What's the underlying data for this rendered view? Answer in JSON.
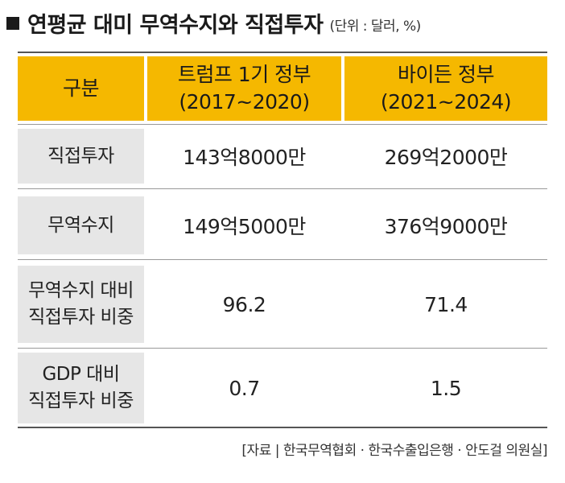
{
  "title": "연평균 대미 무역수지와 직접투자",
  "unit": "(단위 : 달러, %)",
  "table": {
    "header": {
      "category": "구분",
      "col1_line1": "트럼프 1기 정부",
      "col1_line2": "(2017~2020)",
      "col2_line1": "바이든 정부",
      "col2_line2": "(2021~2024)"
    },
    "rows": [
      {
        "label_line1": "직접투자",
        "label_line2": "",
        "trump": "143억8000만",
        "biden": "269억2000만"
      },
      {
        "label_line1": "무역수지",
        "label_line2": "",
        "trump": "149억5000만",
        "biden": "376억9000만"
      },
      {
        "label_line1": "무역수지 대비",
        "label_line2": "직접투자 비중",
        "trump": "96.2",
        "biden": "71.4"
      },
      {
        "label_line1": "GDP 대비",
        "label_line2": "직접투자 비중",
        "trump": "0.7",
        "biden": "1.5"
      }
    ]
  },
  "source": "[자료 | 한국무역협회 · 한국수출입은행 · 안도걸 의원실]",
  "colors": {
    "header_bg": "#f5b800",
    "label_bg": "#e6e6e6"
  }
}
